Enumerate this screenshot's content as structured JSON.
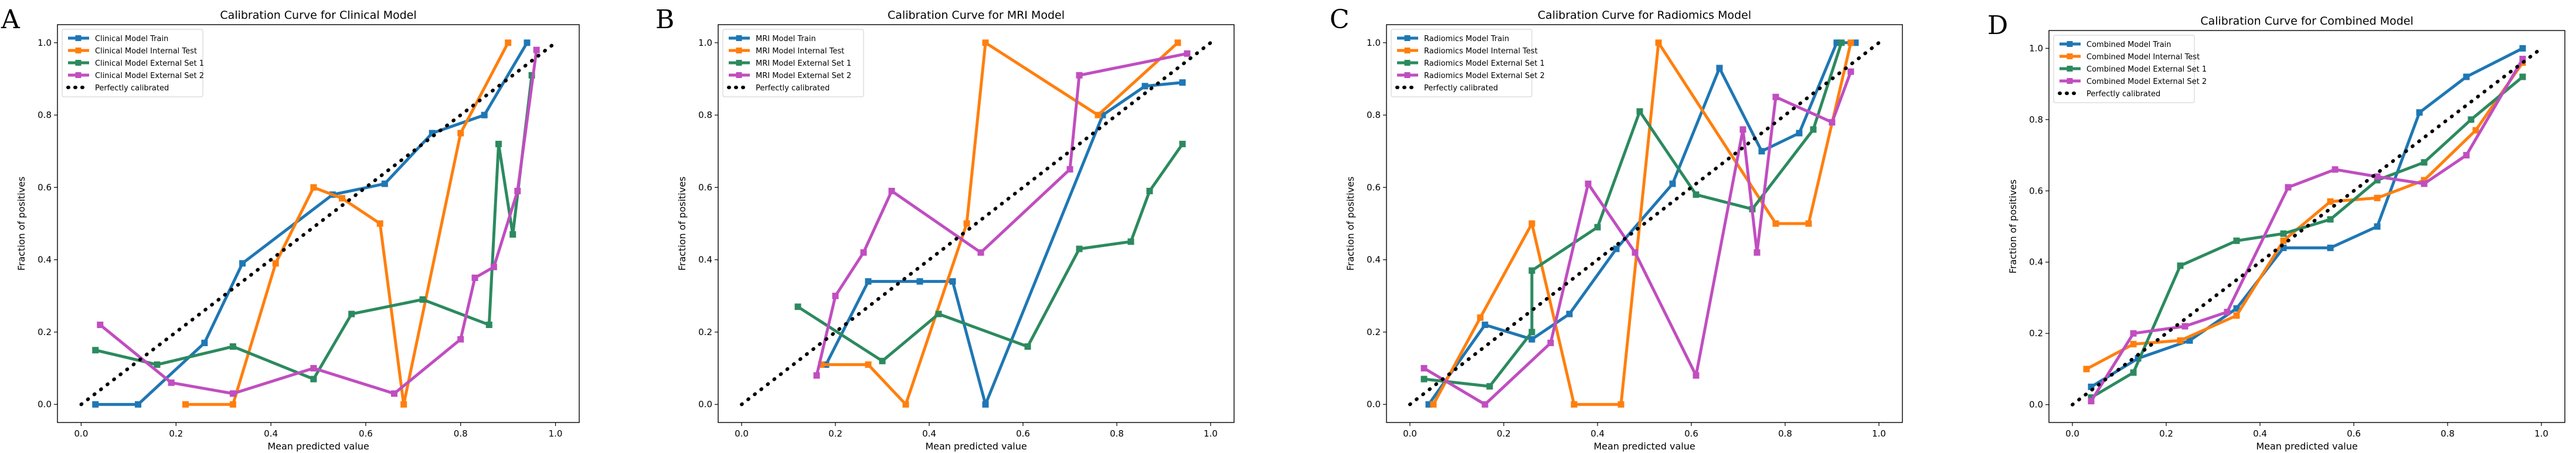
{
  "colors": {
    "train": "#1f77b4",
    "internal_test": "#ff7f0e",
    "external_set_1": "#2c8a5f",
    "external_set_2": "#c04ec0",
    "perfect": "#000000"
  },
  "chart_data": [
    {
      "type": "line",
      "panel_letter": "A",
      "title": "Calibration Curve for Clinical Model",
      "xlabel": "Mean predicted value",
      "ylabel": "Fraction of positives",
      "xlim": [
        -0.05,
        1.05
      ],
      "ylim": [
        -0.05,
        1.05
      ],
      "xticks": [
        "0.0",
        "0.2",
        "0.4",
        "0.6",
        "0.8",
        "1.0"
      ],
      "yticks": [
        "0.0",
        "0.2",
        "0.4",
        "0.6",
        "0.8",
        "1.0"
      ],
      "legend_position": "top-left",
      "series": [
        {
          "name": "Clinical Model Train",
          "color_key": "train",
          "x": [
            0.03,
            0.12,
            0.26,
            0.34,
            0.53,
            0.64,
            0.74,
            0.85,
            0.94
          ],
          "y": [
            0.0,
            0.0,
            0.17,
            0.39,
            0.58,
            0.61,
            0.75,
            0.8,
            1.0
          ]
        },
        {
          "name": "Clinical Model Internal Test",
          "color_key": "internal_test",
          "x": [
            0.22,
            0.32,
            0.41,
            0.49,
            0.55,
            0.63,
            0.68,
            0.8,
            0.9
          ],
          "y": [
            0.0,
            0.0,
            0.39,
            0.6,
            0.57,
            0.5,
            0.0,
            0.75,
            1.0
          ]
        },
        {
          "name": "Clinical Model External Set 1",
          "color_key": "external_set_1",
          "x": [
            0.03,
            0.16,
            0.32,
            0.49,
            0.57,
            0.72,
            0.86,
            0.88,
            0.91,
            0.95
          ],
          "y": [
            0.15,
            0.11,
            0.16,
            0.07,
            0.25,
            0.29,
            0.22,
            0.72,
            0.47,
            0.91
          ]
        },
        {
          "name": "Clinical Model External Set 2",
          "color_key": "external_set_2",
          "x": [
            0.04,
            0.19,
            0.32,
            0.49,
            0.66,
            0.8,
            0.83,
            0.87,
            0.92,
            0.96
          ],
          "y": [
            0.22,
            0.06,
            0.03,
            0.1,
            0.03,
            0.18,
            0.35,
            0.38,
            0.59,
            0.98
          ]
        },
        {
          "name": "Perfectly calibrated",
          "color_key": "perfect",
          "dotted": true,
          "x": [
            0.0,
            1.0
          ],
          "y": [
            0.0,
            1.0
          ]
        }
      ]
    },
    {
      "type": "line",
      "panel_letter": "B",
      "title": "Calibration Curve for MRI Model",
      "xlabel": "Mean predicted value",
      "ylabel": "Fraction of positives",
      "xlim": [
        -0.05,
        1.05
      ],
      "ylim": [
        -0.05,
        1.05
      ],
      "xticks": [
        "0.0",
        "0.2",
        "0.4",
        "0.6",
        "0.8",
        "1.0"
      ],
      "yticks": [
        "0.0",
        "0.2",
        "0.4",
        "0.6",
        "0.8",
        "1.0"
      ],
      "legend_position": "top-left",
      "series": [
        {
          "name": "MRI Model Train",
          "color_key": "train",
          "x": [
            0.18,
            0.27,
            0.38,
            0.45,
            0.52,
            0.77,
            0.86,
            0.94
          ],
          "y": [
            0.11,
            0.34,
            0.34,
            0.34,
            0.0,
            0.8,
            0.88,
            0.89
          ]
        },
        {
          "name": "MRI Model Internal Test",
          "color_key": "internal_test",
          "x": [
            0.17,
            0.27,
            0.35,
            0.48,
            0.52,
            0.76,
            0.93
          ],
          "y": [
            0.11,
            0.11,
            0.0,
            0.5,
            1.0,
            0.8,
            1.0
          ]
        },
        {
          "name": "MRI Model External Set 1",
          "color_key": "external_set_1",
          "x": [
            0.12,
            0.3,
            0.42,
            0.61,
            0.72,
            0.83,
            0.87,
            0.94
          ],
          "y": [
            0.27,
            0.12,
            0.25,
            0.16,
            0.43,
            0.45,
            0.59,
            0.72
          ]
        },
        {
          "name": "MRI Model External Set 2",
          "color_key": "external_set_2",
          "x": [
            0.16,
            0.2,
            0.26,
            0.32,
            0.51,
            0.7,
            0.72,
            0.95
          ],
          "y": [
            0.08,
            0.3,
            0.42,
            0.59,
            0.42,
            0.65,
            0.91,
            0.97
          ]
        },
        {
          "name": "Perfectly calibrated",
          "color_key": "perfect",
          "dotted": true,
          "x": [
            0.0,
            1.0
          ],
          "y": [
            0.0,
            1.0
          ]
        }
      ]
    },
    {
      "type": "line",
      "panel_letter": "C",
      "title": "Calibration Curve for Radiomics Model",
      "xlabel": "Mean predicted value",
      "ylabel": "Fraction of positives",
      "xlim": [
        -0.05,
        1.05
      ],
      "ylim": [
        -0.05,
        1.05
      ],
      "xticks": [
        "0.0",
        "0.2",
        "0.4",
        "0.6",
        "0.8",
        "1.0"
      ],
      "yticks": [
        "0.0",
        "0.2",
        "0.4",
        "0.6",
        "0.8",
        "1.0"
      ],
      "legend_position": "top-left",
      "series": [
        {
          "name": "Radiomics Model Train",
          "color_key": "train",
          "x": [
            0.04,
            0.16,
            0.26,
            0.34,
            0.44,
            0.56,
            0.66,
            0.75,
            0.83,
            0.91,
            0.95
          ],
          "y": [
            0.0,
            0.22,
            0.18,
            0.25,
            0.43,
            0.61,
            0.93,
            0.7,
            0.75,
            1.0,
            1.0
          ]
        },
        {
          "name": "Radiomics Model Internal Test",
          "color_key": "internal_test",
          "x": [
            0.05,
            0.15,
            0.26,
            0.35,
            0.45,
            0.53,
            0.78,
            0.85,
            0.94
          ],
          "y": [
            0.0,
            0.24,
            0.5,
            0.0,
            0.0,
            1.0,
            0.5,
            0.5,
            1.0
          ]
        },
        {
          "name": "Radiomics Model External Set 1",
          "color_key": "external_set_1",
          "x": [
            0.03,
            0.17,
            0.26,
            0.26,
            0.4,
            0.49,
            0.61,
            0.73,
            0.86,
            0.92
          ],
          "y": [
            0.07,
            0.05,
            0.2,
            0.37,
            0.49,
            0.81,
            0.58,
            0.54,
            0.76,
            1.0
          ]
        },
        {
          "name": "Radiomics Model External Set 2",
          "color_key": "external_set_2",
          "x": [
            0.03,
            0.16,
            0.3,
            0.38,
            0.48,
            0.61,
            0.71,
            0.74,
            0.78,
            0.9,
            0.94
          ],
          "y": [
            0.1,
            0.0,
            0.17,
            0.61,
            0.42,
            0.08,
            0.76,
            0.42,
            0.85,
            0.78,
            0.92
          ]
        },
        {
          "name": "Perfectly calibrated",
          "color_key": "perfect",
          "dotted": true,
          "x": [
            0.0,
            1.0
          ],
          "y": [
            0.0,
            1.0
          ]
        }
      ]
    },
    {
      "type": "line",
      "panel_letter": "D",
      "title": "Calibration Curve for Combined Model",
      "xlabel": "Mean predicted value",
      "ylabel": "Fraction of positives",
      "xlim": [
        -0.05,
        1.05
      ],
      "ylim": [
        -0.05,
        1.05
      ],
      "xticks": [
        "0.0",
        "0.2",
        "0.4",
        "0.6",
        "0.8",
        "1.0"
      ],
      "yticks": [
        "0.0",
        "0.2",
        "0.4",
        "0.6",
        "0.8",
        "1.0"
      ],
      "legend_position": "top-left",
      "series": [
        {
          "name": "Combined Model Train",
          "color_key": "train",
          "x": [
            0.04,
            0.14,
            0.25,
            0.35,
            0.45,
            0.55,
            0.65,
            0.74,
            0.84,
            0.96
          ],
          "y": [
            0.05,
            0.13,
            0.18,
            0.27,
            0.44,
            0.44,
            0.5,
            0.82,
            0.92,
            1.0
          ]
        },
        {
          "name": "Combined Model Internal Test",
          "color_key": "internal_test",
          "x": [
            0.03,
            0.13,
            0.23,
            0.35,
            0.45,
            0.55,
            0.65,
            0.75,
            0.86,
            0.96
          ],
          "y": [
            0.1,
            0.17,
            0.18,
            0.25,
            0.46,
            0.57,
            0.58,
            0.63,
            0.77,
            0.96
          ]
        },
        {
          "name": "Combined Model External Set 1",
          "color_key": "external_set_1",
          "x": [
            0.04,
            0.13,
            0.23,
            0.35,
            0.45,
            0.55,
            0.65,
            0.75,
            0.85,
            0.96
          ],
          "y": [
            0.02,
            0.09,
            0.39,
            0.46,
            0.48,
            0.52,
            0.63,
            0.68,
            0.8,
            0.92
          ]
        },
        {
          "name": "Combined Model External Set 2",
          "color_key": "external_set_2",
          "x": [
            0.04,
            0.13,
            0.24,
            0.33,
            0.46,
            0.56,
            0.65,
            0.75,
            0.84,
            0.96
          ],
          "y": [
            0.01,
            0.2,
            0.22,
            0.26,
            0.61,
            0.66,
            0.64,
            0.62,
            0.7,
            0.97
          ]
        },
        {
          "name": "Perfectly calibrated",
          "color_key": "perfect",
          "dotted": true,
          "x": [
            0.0,
            1.0
          ],
          "y": [
            0.0,
            1.0
          ]
        }
      ]
    }
  ]
}
